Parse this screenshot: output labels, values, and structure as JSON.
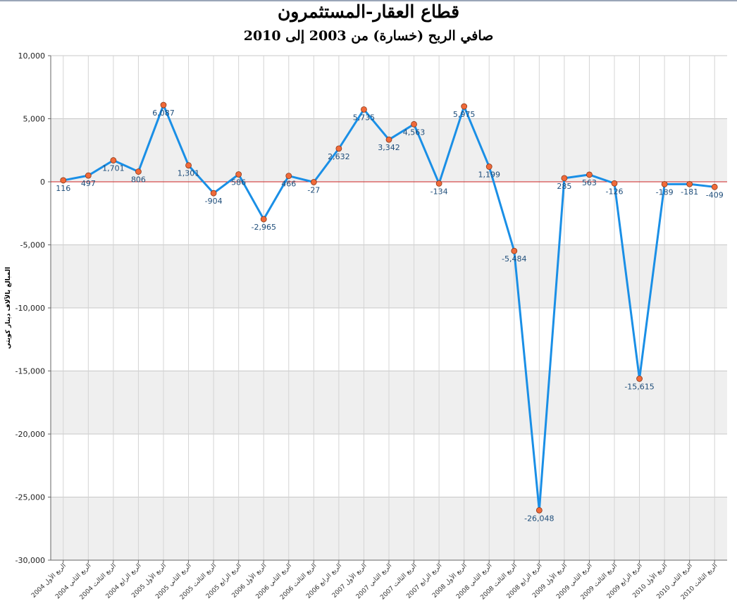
{
  "chart_data": {
    "type": "line",
    "title": "قطاع العقار-المستثمرون",
    "subtitle": "صافي الربح (خسارة) من 2003 إلى 2010",
    "ylabel": "المبالغ بالآلاف دينار كويتي",
    "xlabel": "",
    "ylim": [
      -30000,
      10000
    ],
    "yticks": [
      10000,
      5000,
      0,
      -5000,
      -10000,
      -15000,
      -20000,
      -25000,
      -30000
    ],
    "ytick_labels": [
      "10,000",
      "5,000",
      "0",
      "-5,000",
      "-10,000",
      "-15,000",
      "-20,000",
      "-25,000",
      "-30,000"
    ],
    "grid": true,
    "zero_line_color": "#cc2222",
    "line_color": "#1a8fe6",
    "marker_color": "#f06a3a",
    "band_color": "#efefef",
    "categories": [
      "الربع الأول 2004",
      "الربع الثاني 2004",
      "الربع الثالث 2004",
      "الربع الرابع 2004",
      "الربع الأول 2005",
      "الربع الثاني 2005",
      "الربع الثالث 2005",
      "الربع الرابع 2005",
      "الربع الأول 2006",
      "الربع الثاني 2006",
      "الربع الثالث 2006",
      "الربع الرابع 2006",
      "الربع الأول 2007",
      "الربع الثاني 2007",
      "الربع الثالث 2007",
      "الربع الرابع 2007",
      "الربع الأول 2008",
      "الربع الثاني 2008",
      "الربع الثالث 2008",
      "الربع الرابع 2008",
      "الربع الأول 2009",
      "الربع الثاني 2009",
      "الربع الثالث 2009",
      "الربع الرابع 2009",
      "الربع الأول 2010",
      "الربع الثاني 2010",
      "الربع الثالث 2010"
    ],
    "values": [
      116,
      497,
      1701,
      806,
      6087,
      1301,
      -904,
      586,
      -2965,
      466,
      -27,
      2632,
      5735,
      3342,
      4563,
      -134,
      5975,
      1199,
      -5484,
      -26048,
      285,
      563,
      -126,
      -15615,
      -189,
      -181,
      -409
    ],
    "value_labels": [
      "116",
      "497",
      "1,701",
      "806",
      "6,087",
      "1,301",
      "-904",
      "586",
      "-2,965",
      "466",
      "-27",
      "2,632",
      "5,735",
      "3,342",
      "4,563",
      "-134",
      "5,975",
      "1,199",
      "-5,484",
      "-26,048",
      "285",
      "563",
      "-126",
      "-15,615",
      "-189",
      "-181",
      "-409"
    ]
  }
}
